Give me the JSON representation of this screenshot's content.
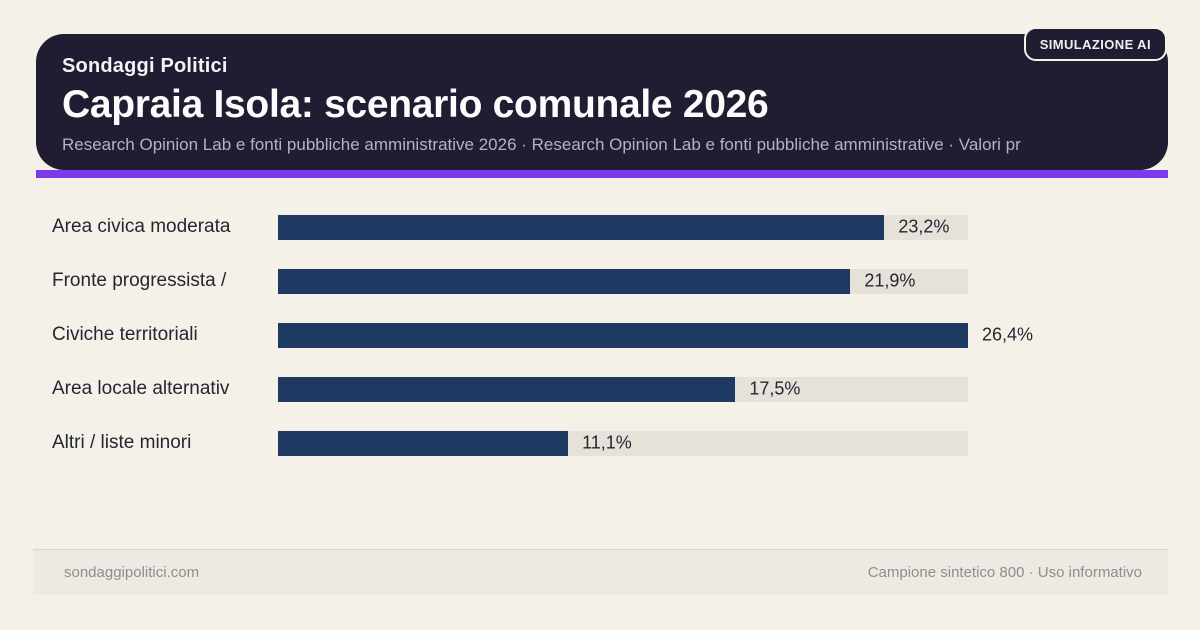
{
  "badge": {
    "label": "SIMULAZIONE AI"
  },
  "header": {
    "kicker": "Sondaggi Politici",
    "title": "Capraia Isola: scenario comunale 2026",
    "subtitle": "Research Opinion Lab e fonti pubbliche amministrative 2026 · Research Opinion Lab e fonti pubbliche amministrative · Valori pr"
  },
  "chart_data": {
    "type": "bar",
    "orientation": "horizontal",
    "title": "Capraia Isola: scenario comunale 2026",
    "categories": [
      "Area civica moderata",
      "Fronte progressista /",
      "Civiche territoriali",
      "Area locale alternativ",
      "Altri / liste minori"
    ],
    "values": [
      23.2,
      21.9,
      26.4,
      17.5,
      11.1
    ],
    "value_labels": [
      "23,2%",
      "21,9%",
      "26,4%",
      "17,5%",
      "11,1%"
    ],
    "xlim": [
      0,
      26.4
    ],
    "unit": "%",
    "grid": false,
    "legend": false,
    "bar_color": "#1e3a63",
    "track_color": "#e6e2d9"
  },
  "footer": {
    "left": "sondaggipolitici.com",
    "right": "Campione sintetico 800 · Uso informativo"
  },
  "colors": {
    "background": "#f5f1e8",
    "header_bg": "#201c31",
    "accent": "#7c3aed",
    "bar": "#1e3a63",
    "track": "#e6e2d9",
    "subtitle_text": "#b2b4c2",
    "label_text": "#232733",
    "footer_bg": "#edeae3",
    "footer_text": "#8e8e8c"
  }
}
